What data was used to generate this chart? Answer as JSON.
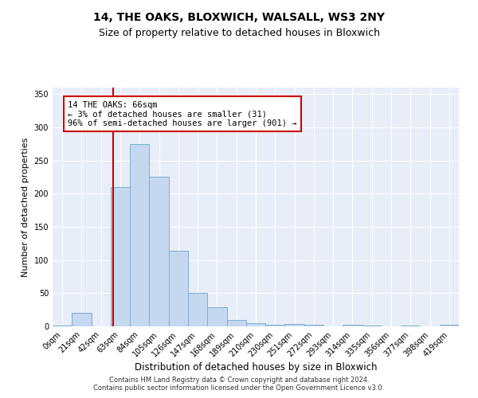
{
  "title1": "14, THE OAKS, BLOXWICH, WALSALL, WS3 2NY",
  "title2": "Size of property relative to detached houses in Bloxwich",
  "xlabel": "Distribution of detached houses by size in Bloxwich",
  "ylabel": "Number of detached properties",
  "categories": [
    "0sqm",
    "21sqm",
    "42sqm",
    "63sqm",
    "84sqm",
    "105sqm",
    "126sqm",
    "147sqm",
    "168sqm",
    "189sqm",
    "210sqm",
    "230sqm",
    "251sqm",
    "272sqm",
    "293sqm",
    "314sqm",
    "335sqm",
    "356sqm",
    "377sqm",
    "398sqm",
    "419sqm"
  ],
  "bar_values": [
    1,
    20,
    0,
    210,
    275,
    226,
    114,
    50,
    29,
    10,
    5,
    2,
    4,
    2,
    0,
    3,
    1,
    0,
    1,
    0,
    2
  ],
  "bar_color": "#c5d8f0",
  "bar_edge_color": "#7aafd4",
  "vline_color": "#cc0000",
  "annotation_text": "14 THE OAKS: 66sqm\n← 3% of detached houses are smaller (31)\n96% of semi-detached houses are larger (901) →",
  "annotation_box_color": "#ffffff",
  "annotation_box_edge": "#cc0000",
  "ylim": [
    0,
    360
  ],
  "yticks": [
    0,
    50,
    100,
    150,
    200,
    250,
    300,
    350
  ],
  "background_color": "#e8eef8",
  "footer1": "Contains HM Land Registry data © Crown copyright and database right 2024.",
  "footer2": "Contains public sector information licensed under the Open Government Licence v3.0.",
  "title1_fontsize": 10,
  "title2_fontsize": 9,
  "xlabel_fontsize": 8.5,
  "ylabel_fontsize": 8,
  "tick_fontsize": 7,
  "annotation_fontsize": 7.5,
  "footer_fontsize": 6
}
